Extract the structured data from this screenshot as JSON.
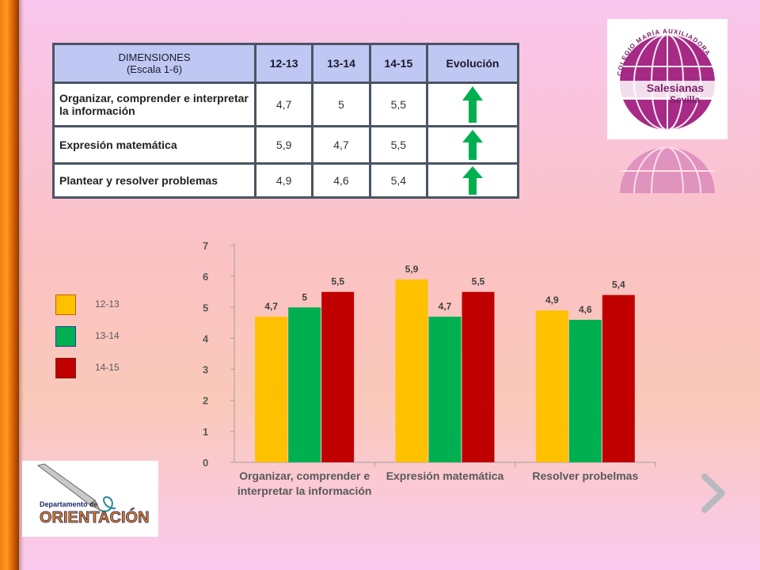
{
  "table": {
    "headers": [
      "DIMENSIONES\n(Escala 1-6)",
      "12-13",
      "13-14",
      "14-15",
      "Evolución"
    ],
    "rows": [
      {
        "name": "Organizar, comprender e interpretar la información",
        "v1": "4,7",
        "v2": "5",
        "v3": "5,5",
        "evolution": "up-arrow"
      },
      {
        "name": "Expresión matemática",
        "v1": "5,9",
        "v2": "4,7",
        "v3": "5,5",
        "evolution": "up-arrow"
      },
      {
        "name": "Plantear y resolver problemas",
        "v1": "4,9",
        "v2": "4,6",
        "v3": "5,4",
        "evolution": "up-arrow"
      }
    ]
  },
  "legend": [
    {
      "label": "12-13",
      "color": "#ffc000",
      "border": "#c06000"
    },
    {
      "label": "13-14",
      "color": "#00b050",
      "border": "#1f3ba0"
    },
    {
      "label": "14-15",
      "color": "#c00000",
      "border": "#7a2020"
    }
  ],
  "chart_data": {
    "type": "bar",
    "categories": [
      "Organizar, comprender e\ninterpretar la información",
      "Expresión matemática",
      "Resolver probelmas"
    ],
    "series": [
      {
        "name": "12-13",
        "color": "#ffc000",
        "values": [
          4.7,
          5.9,
          4.9
        ],
        "labels": [
          "4,7",
          "5,9",
          "4,9"
        ]
      },
      {
        "name": "13-14",
        "color": "#00b050",
        "values": [
          5,
          4.7,
          4.6
        ],
        "labels": [
          "5",
          "4,7",
          "4,6"
        ]
      },
      {
        "name": "14-15",
        "color": "#c00000",
        "values": [
          5.5,
          5.5,
          5.4
        ],
        "labels": [
          "5,5",
          "5,5",
          "5,4"
        ]
      }
    ],
    "ylim": [
      0,
      7
    ],
    "yticks": [
      "0",
      "1",
      "2",
      "3",
      "4",
      "5",
      "6",
      "7"
    ],
    "grid": false,
    "legend": "left"
  },
  "logos": {
    "school_ring_text": "COLEGIO MARÍA AUXILIADORA",
    "school_name_1": "Salesianas",
    "school_name_2": "Sevilla",
    "dept_line1": "Departamento de",
    "dept_line2": "ORIENTACIÓN"
  },
  "colors": {
    "arrow": "#00b050",
    "header_bg": "#bfc8f2",
    "accent_orange": "#f27e12"
  },
  "nav": {
    "next_icon": "chevron-right-icon"
  }
}
